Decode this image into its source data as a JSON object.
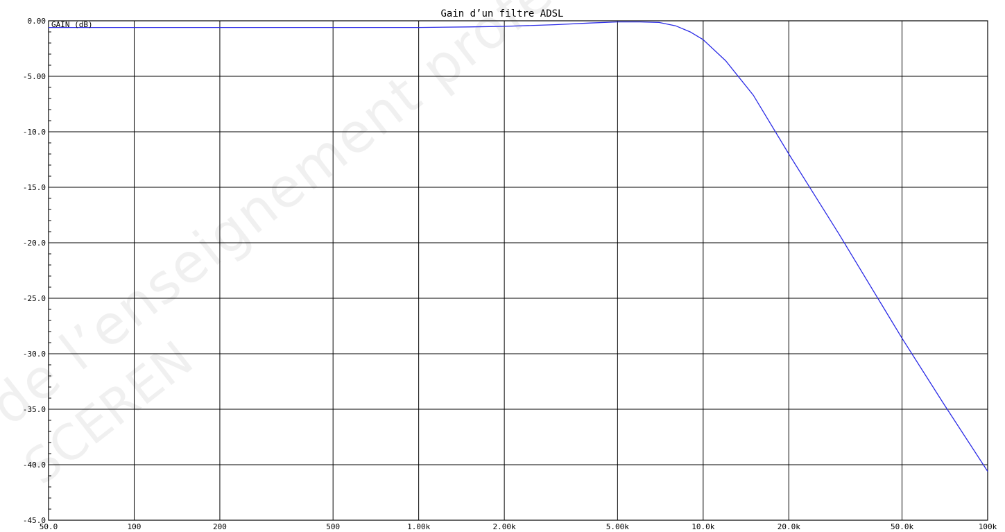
{
  "chart_data": {
    "type": "line",
    "title": "Gain d’un filtre ADSL",
    "ylabel": "GAIN (dB)",
    "xlabel": "",
    "x_scale": "log",
    "xlim": [
      50,
      100000
    ],
    "ylim": [
      -45,
      0
    ],
    "grid": true,
    "x_ticks": [
      50,
      100,
      200,
      500,
      1000,
      2000,
      5000,
      10000,
      20000,
      50000,
      100000
    ],
    "x_tick_labels": [
      "50.0",
      "100",
      "200",
      "500",
      "1.00k",
      "2.00k",
      "5.00k",
      "10.0k",
      "20.0k",
      "50.0k",
      "100k"
    ],
    "y_ticks": [
      0,
      -5,
      -10,
      -15,
      -20,
      -25,
      -30,
      -35,
      -40,
      -45
    ],
    "y_tick_labels": [
      "0.00",
      "-5.00",
      "-10.0",
      "-15.0",
      "-20.0",
      "-25.0",
      "-30.0",
      "-35.0",
      "-40.0",
      "-45.0"
    ],
    "series": [
      {
        "color": "#2a2ae6",
        "x": [
          50,
          100,
          200,
          500,
          1000,
          1500,
          2000,
          3000,
          4000,
          5000,
          6000,
          7000,
          8000,
          9000,
          10000,
          12000,
          15000,
          20000,
          30000,
          50000,
          70000,
          100000
        ],
        "y": [
          -0.6,
          -0.6,
          -0.6,
          -0.6,
          -0.6,
          -0.55,
          -0.5,
          -0.35,
          -0.2,
          -0.1,
          -0.1,
          -0.15,
          -0.45,
          -1.0,
          -1.7,
          -3.6,
          -6.7,
          -12.0,
          -19.2,
          -28.6,
          -34.5,
          -40.6
        ]
      }
    ]
  },
  "watermark": {
    "line1": "de l’enseignement professionnel",
    "line2": "SCEREN"
  }
}
